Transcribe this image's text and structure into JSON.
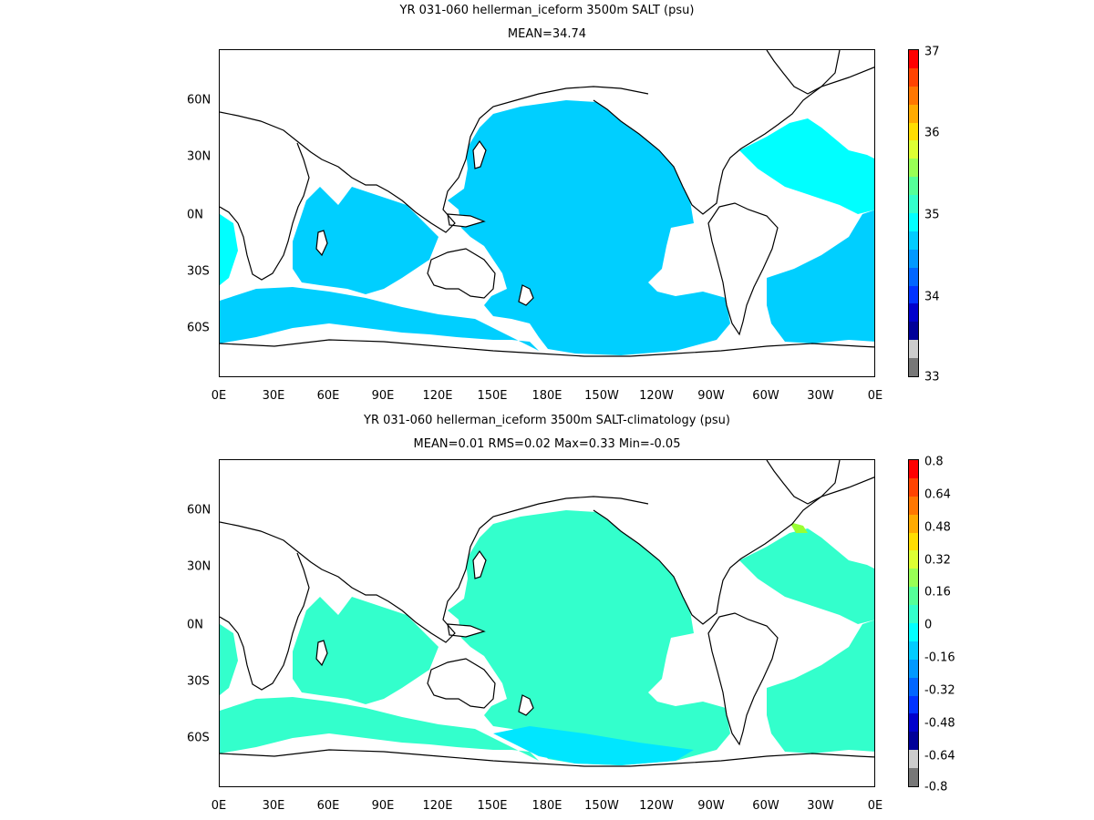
{
  "colors": {
    "land": "#ffffff",
    "coast": "#000000",
    "ocean_mean": "#00cfff",
    "ocean_mean_light": "#00ffff",
    "diff_main": "#33ffcc",
    "diff_low": "#00e6ff",
    "diff_high": "#99ff33"
  },
  "x_axis_labels": [
    "0E",
    "30E",
    "60E",
    "90E",
    "120E",
    "150E",
    "180E",
    "150W",
    "120W",
    "90W",
    "60W",
    "30W",
    "0E"
  ],
  "y_axis_labels": [
    "60N",
    "30N",
    "0N",
    "30S",
    "60S"
  ],
  "panels": [
    {
      "id": "mean",
      "title": "YR 031-060 hellerman_iceform 3500m SALT (psu)",
      "subtitle": "MEAN=34.74",
      "colorbar": {
        "labels": [
          "37",
          "36",
          "35",
          "34",
          "33"
        ],
        "colors": [
          "#ff0000",
          "#ff4400",
          "#ff7700",
          "#ffaa00",
          "#ffdd00",
          "#ddff33",
          "#99ff55",
          "#55ff99",
          "#33ffcc",
          "#00ffff",
          "#00ccff",
          "#0099ff",
          "#0066ff",
          "#0033ff",
          "#0000cc",
          "#000099",
          "#cccccc",
          "#777777"
        ]
      }
    },
    {
      "id": "diff",
      "title": "YR 031-060 hellerman_iceform 3500m SALT-climatology (psu)",
      "subtitle": "MEAN=0.01   RMS=0.02   Max=0.33   Min=-0.05",
      "colorbar": {
        "labels": [
          "0.8",
          "0.64",
          "0.48",
          "0.32",
          "0.16",
          "0",
          "-0.16",
          "-0.32",
          "-0.48",
          "-0.64",
          "-0.8"
        ],
        "colors": [
          "#ff0000",
          "#ff4400",
          "#ff7700",
          "#ffaa00",
          "#ffdd00",
          "#ddff33",
          "#99ff55",
          "#55ff99",
          "#33ffcc",
          "#00ffff",
          "#00ccff",
          "#0099ff",
          "#0066ff",
          "#0033ff",
          "#0000cc",
          "#000099",
          "#cccccc",
          "#777777"
        ]
      }
    }
  ]
}
